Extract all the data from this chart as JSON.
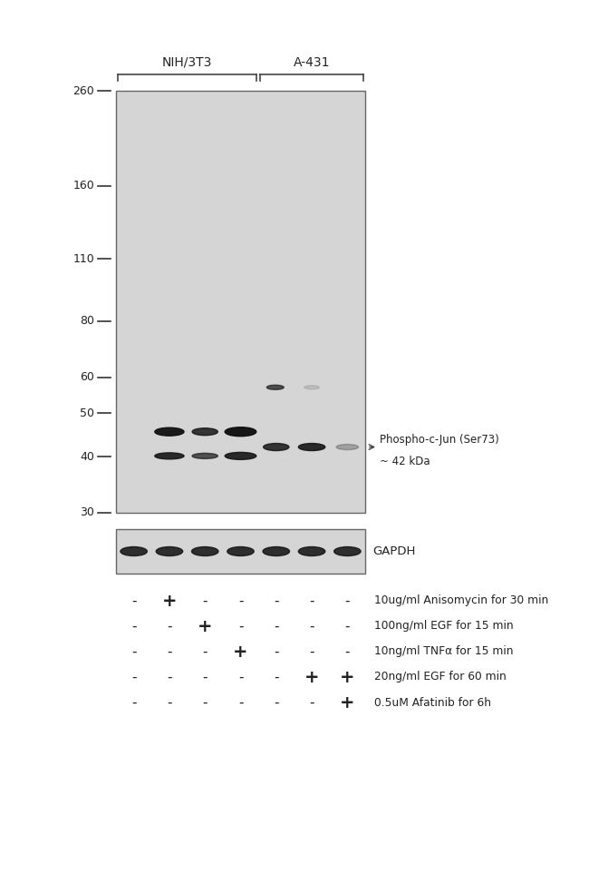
{
  "bg_color": "#ffffff",
  "gel_bg": "#d5d5d5",
  "marker_labels": [
    "260",
    "160",
    "110",
    "80",
    "60",
    "50",
    "40",
    "30"
  ],
  "marker_kda": [
    260,
    160,
    110,
    80,
    60,
    50,
    40,
    30
  ],
  "band_label_line1": "Phospho-c-Jun (Ser73)",
  "band_label_line2": "~ 42 kDa",
  "gapdh_label": "GAPDH",
  "nih_label": "NIH/3T3",
  "a431_label": "A-431",
  "treatment_labels": [
    "10ug/ml Anisomycin for 30 min",
    "100ng/ml EGF for 15 min",
    "10ng/ml TNFα for 15 min",
    "20ng/ml EGF for 60 min",
    "0.5uM Afatinib for 6h"
  ],
  "treatment_signs": [
    [
      "-",
      "+",
      "-",
      "-",
      "-",
      "-",
      "-"
    ],
    [
      "-",
      "-",
      "+",
      "-",
      "-",
      "-",
      "-"
    ],
    [
      "-",
      "-",
      "-",
      "+",
      "-",
      "-",
      "-"
    ],
    [
      "-",
      "-",
      "-",
      "-",
      "-",
      "+",
      "+"
    ],
    [
      "-",
      "-",
      "-",
      "-",
      "-",
      "-",
      "+"
    ]
  ],
  "num_lanes": 7,
  "fig_width": 6.5,
  "fig_height": 9.63,
  "dpi": 100
}
